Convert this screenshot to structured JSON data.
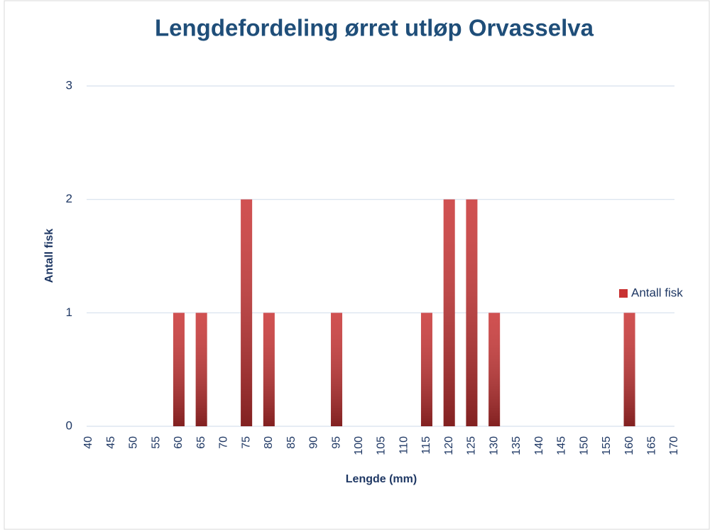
{
  "chart_data": {
    "type": "bar",
    "title": "Lengdefordeling ørret utløp Orvasselva",
    "xlabel": "Lengde (mm)",
    "ylabel": "Antall fisk",
    "categories": [
      40,
      45,
      50,
      55,
      60,
      65,
      70,
      75,
      80,
      85,
      90,
      95,
      100,
      105,
      110,
      115,
      120,
      125,
      130,
      135,
      140,
      145,
      150,
      155,
      160,
      165,
      170
    ],
    "series": [
      {
        "name": "Antall fisk",
        "color": "#c83232",
        "values": [
          0,
          0,
          0,
          0,
          1,
          1,
          0,
          2,
          1,
          0,
          0,
          1,
          0,
          0,
          0,
          1,
          2,
          2,
          1,
          0,
          0,
          0,
          0,
          0,
          1,
          0,
          0
        ]
      }
    ],
    "ylim": [
      0,
      3
    ],
    "yticks": [
      0,
      1,
      2,
      3
    ],
    "grid": true,
    "legend": "right"
  }
}
